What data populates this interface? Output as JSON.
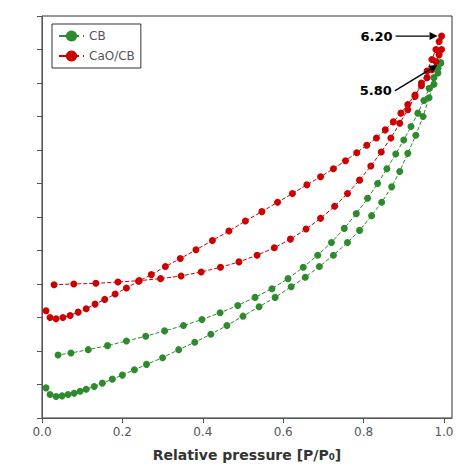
{
  "chart_data": {
    "type": "line",
    "xlabel": "Relative pressure [P/P₀]",
    "marker": "circle",
    "line_style": "dashed",
    "grid": false,
    "legend": "upper left",
    "tick_labels": "x",
    "xlim": [
      0.0,
      1.02
    ],
    "xticks": [
      {
        "value": 0.0,
        "label": "0.0"
      },
      0.2,
      0.4,
      0.6,
      0.8,
      {
        "value": 1.0,
        "label": "1.0"
      }
    ],
    "ylim": [
      0.5,
      6.5
    ],
    "yticks": [
      0.5,
      1.0,
      1.5,
      2.0,
      2.5,
      3.0,
      3.5,
      4.0,
      4.5,
      5.0,
      5.5,
      6.0,
      6.5
    ],
    "annotations": [
      {
        "text": "6.20",
        "x": 0.994,
        "y": 6.2
      },
      {
        "text": "5.80",
        "x": 0.992,
        "y": 5.8
      }
    ],
    "series": [
      {
        "name": "CB",
        "color": "#2d8a2d",
        "x": [
          0.01,
          0.02,
          0.035,
          0.05,
          0.065,
          0.08,
          0.095,
          0.11,
          0.13,
          0.15,
          0.175,
          0.2,
          0.23,
          0.26,
          0.3,
          0.34,
          0.38,
          0.42,
          0.46,
          0.5,
          0.54,
          0.58,
          0.62,
          0.655,
          0.69,
          0.725,
          0.76,
          0.79,
          0.82,
          0.845,
          0.87,
          0.89,
          0.91,
          0.93,
          0.948,
          0.963,
          0.975,
          0.985,
          0.992
        ],
        "values": [
          0.95,
          0.85,
          0.82,
          0.83,
          0.85,
          0.87,
          0.9,
          0.93,
          0.97,
          1.02,
          1.08,
          1.14,
          1.22,
          1.3,
          1.4,
          1.52,
          1.63,
          1.75,
          1.88,
          2.02,
          2.16,
          2.3,
          2.46,
          2.6,
          2.76,
          2.93,
          3.12,
          3.3,
          3.52,
          3.72,
          3.95,
          4.18,
          4.45,
          4.72,
          5.0,
          5.28,
          5.48,
          5.65,
          5.8
        ]
      },
      {
        "name": "CB",
        "color": "#2d8a2d",
        "x": [
          0.992,
          0.985,
          0.975,
          0.963,
          0.95,
          0.935,
          0.918,
          0.9,
          0.88,
          0.858,
          0.835,
          0.81,
          0.782,
          0.752,
          0.72,
          0.686,
          0.65,
          0.612,
          0.572,
          0.53,
          0.487,
          0.443,
          0.398,
          0.352,
          0.305,
          0.258,
          0.21,
          0.163,
          0.115,
          0.072,
          0.04
        ],
        "values": [
          5.8,
          5.72,
          5.58,
          5.42,
          5.24,
          5.05,
          4.85,
          4.65,
          4.44,
          4.22,
          4.0,
          3.78,
          3.55,
          3.33,
          3.12,
          2.93,
          2.75,
          2.58,
          2.43,
          2.3,
          2.18,
          2.07,
          1.97,
          1.88,
          1.8,
          1.72,
          1.65,
          1.58,
          1.52,
          1.47,
          1.44
        ]
      },
      {
        "name": "CaO/CB",
        "color": "#cc0000",
        "x": [
          0.01,
          0.02,
          0.035,
          0.052,
          0.07,
          0.09,
          0.11,
          0.132,
          0.156,
          0.182,
          0.21,
          0.24,
          0.272,
          0.307,
          0.344,
          0.383,
          0.424,
          0.465,
          0.506,
          0.547,
          0.586,
          0.623,
          0.659,
          0.693,
          0.725,
          0.755,
          0.783,
          0.808,
          0.832,
          0.854,
          0.874,
          0.893,
          0.91,
          0.928,
          0.944,
          0.958,
          0.97,
          0.98,
          0.988,
          0.994
        ],
        "values": [
          2.1,
          2.0,
          1.98,
          2.0,
          2.03,
          2.08,
          2.13,
          2.2,
          2.27,
          2.35,
          2.44,
          2.54,
          2.64,
          2.76,
          2.88,
          3.01,
          3.15,
          3.29,
          3.44,
          3.58,
          3.72,
          3.85,
          3.98,
          4.1,
          4.22,
          4.34,
          4.46,
          4.57,
          4.68,
          4.8,
          4.92,
          5.05,
          5.18,
          5.32,
          5.46,
          5.58,
          5.7,
          5.82,
          5.92,
          6.0
        ]
      },
      {
        "name": "CaO/CB",
        "color": "#cc0000",
        "x": [
          0.994,
          0.988,
          0.98,
          0.97,
          0.958,
          0.944,
          0.928,
          0.91,
          0.89,
          0.868,
          0.844,
          0.818,
          0.79,
          0.76,
          0.728,
          0.693,
          0.657,
          0.618,
          0.578,
          0.535,
          0.49,
          0.444,
          0.396,
          0.346,
          0.295,
          0.242,
          0.189,
          0.134,
          0.079,
          0.03
        ],
        "values": [
          6.2,
          6.12,
          6.0,
          5.85,
          5.68,
          5.5,
          5.3,
          5.1,
          4.9,
          4.68,
          4.47,
          4.26,
          4.05,
          3.85,
          3.66,
          3.48,
          3.32,
          3.17,
          3.04,
          2.93,
          2.83,
          2.75,
          2.68,
          2.62,
          2.58,
          2.55,
          2.53,
          2.51,
          2.5,
          2.49
        ]
      }
    ]
  }
}
